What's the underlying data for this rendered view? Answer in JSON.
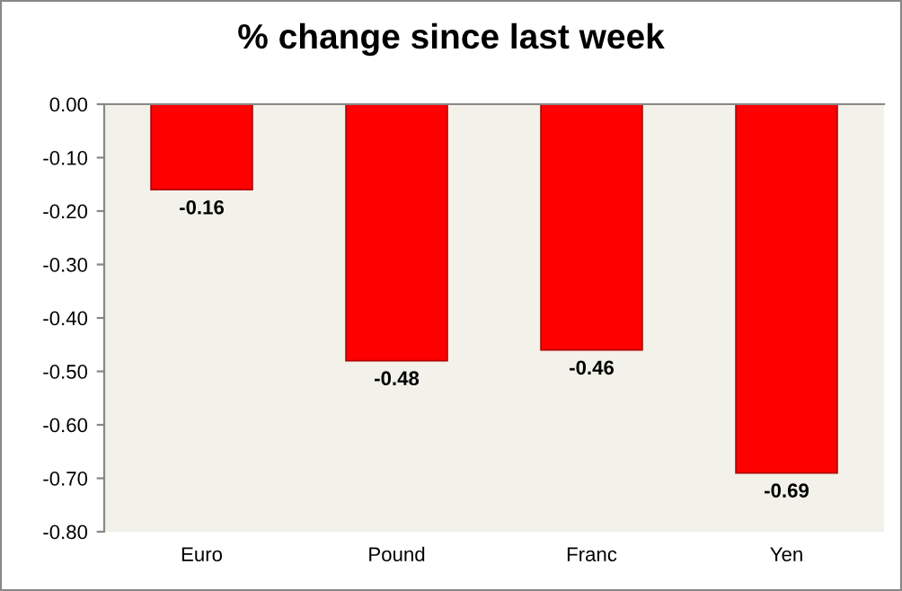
{
  "chart_data": {
    "type": "bar",
    "title": "% change since last week",
    "categories": [
      "Euro",
      "Pound",
      "Franc",
      "Yen"
    ],
    "values": [
      -0.16,
      -0.48,
      -0.46,
      -0.69
    ],
    "color": "#ff0000",
    "ylim": [
      -0.8,
      0.0
    ],
    "yticks": [
      {
        "value": 0.0,
        "label": "0.00"
      },
      {
        "value": -0.1,
        "label": "-0.10"
      },
      {
        "value": -0.2,
        "label": "-0.20"
      },
      {
        "value": -0.3,
        "label": "-0.30"
      },
      {
        "value": -0.4,
        "label": "-0.40"
      },
      {
        "value": -0.5,
        "label": "-0.50"
      },
      {
        "value": -0.6,
        "label": "-0.60"
      },
      {
        "value": -0.7,
        "label": "-0.70"
      },
      {
        "value": -0.8,
        "label": "-0.80"
      }
    ],
    "data_labels": true,
    "grid": false,
    "legend": false
  }
}
